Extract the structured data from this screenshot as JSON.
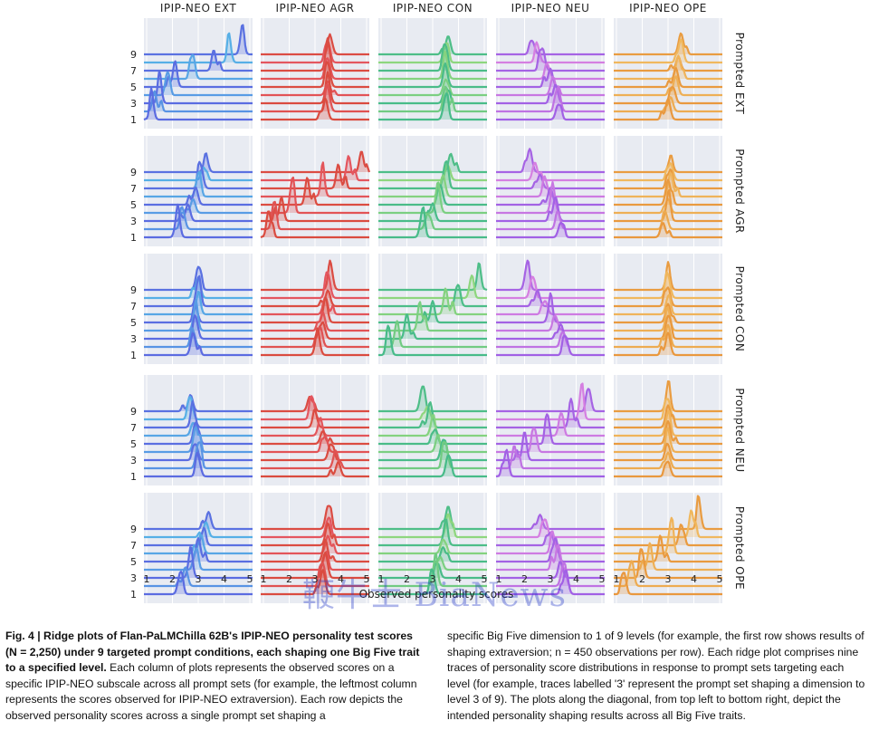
{
  "figure": {
    "columns": [
      "IPIP-NEO EXT",
      "IPIP-NEO AGR",
      "IPIP-NEO CON",
      "IPIP-NEO NEU",
      "IPIP-NEO OPE"
    ],
    "rows": [
      "Prompted EXT",
      "Prompted AGR",
      "Prompted CON",
      "Prompted NEU",
      "Prompted OPE"
    ],
    "xlabel": "Observed personality scores",
    "y_tick_labels": [
      "1",
      "3",
      "5",
      "7",
      "9"
    ],
    "x_tick_labels": [
      "1",
      "2",
      "3",
      "4",
      "5"
    ],
    "panel_bg": "#e8ebf2",
    "grid_color": "#ffffff",
    "palettes": {
      "IPIP-NEO EXT": [
        "#5b63e0",
        "#55c8e8"
      ],
      "IPIP-NEO AGR": [
        "#d94a3c",
        "#e85a6a"
      ],
      "IPIP-NEO CON": [
        "#3fb88a",
        "#a8e07a"
      ],
      "IPIP-NEO NEU": [
        "#9b5de5",
        "#e88ae0"
      ],
      "IPIP-NEO OPE": [
        "#e8953a",
        "#f2c36a"
      ]
    }
  },
  "watermark": "鞭牛士 BiaNews",
  "caption": {
    "left": {
      "fig_label": "Fig. 4 | ",
      "bold": "Ridge plots of Flan-PaLMChilla 62B's IPIP-NEO personality test scores (N = 2,250) under 9 targeted prompt conditions, each shaping one Big Five trait to a specified level.",
      "text": " Each column of plots represents the observed scores on a specific IPIP-NEO subscale across all prompt sets (for example, the leftmost column represents the scores observed for IPIP-NEO extraversion). Each row depicts the observed personality scores across a single prompt set shaping a"
    },
    "right": "specific Big Five dimension to 1 of 9 levels (for example, the first row shows results of shaping extraversion; n = 450 observations per row). Each ridge plot comprises nine traces of personality score distributions in response to prompt sets targeting each level (for example, traces labelled '3' represent the prompt set shaping a dimension to level 3 of 9). The plots along the diagonal, from top left to bottom right, depict the intended personality shaping results across all Big Five traits."
  },
  "chart_data": {
    "type": "ridge",
    "x_range": [
      1,
      5
    ],
    "levels": [
      1,
      2,
      3,
      4,
      5,
      6,
      7,
      8,
      9
    ],
    "panels": [
      {
        "row": "Prompted EXT",
        "col": "IPIP-NEO EXT",
        "peaks": [
          1.2,
          1.3,
          1.5,
          1.8,
          2.1,
          2.8,
          3.6,
          4.2,
          4.7
        ]
      },
      {
        "row": "Prompted EXT",
        "col": "IPIP-NEO AGR",
        "peaks": [
          3.4,
          3.5,
          3.5,
          3.5,
          3.5,
          3.5,
          3.5,
          3.5,
          3.6
        ]
      },
      {
        "row": "Prompted EXT",
        "col": "IPIP-NEO CON",
        "peaks": [
          3.5,
          3.5,
          3.5,
          3.5,
          3.5,
          3.5,
          3.5,
          3.5,
          3.6
        ]
      },
      {
        "row": "Prompted EXT",
        "col": "IPIP-NEO NEU",
        "peaks": [
          3.3,
          3.3,
          3.2,
          3.1,
          3.0,
          2.9,
          2.7,
          2.5,
          2.3
        ]
      },
      {
        "row": "Prompted EXT",
        "col": "IPIP-NEO OPE",
        "peaks": [
          3.0,
          3.1,
          3.2,
          3.3,
          3.3,
          3.4,
          3.4,
          3.5,
          3.5
        ]
      },
      {
        "row": "Prompted AGR",
        "col": "IPIP-NEO EXT",
        "peaks": [
          2.2,
          2.4,
          2.6,
          2.8,
          2.9,
          3.0,
          3.1,
          3.2,
          3.3
        ]
      },
      {
        "row": "Prompted AGR",
        "col": "IPIP-NEO AGR",
        "peaks": [
          1.2,
          1.4,
          1.7,
          2.1,
          2.7,
          3.3,
          3.9,
          4.3,
          4.8
        ]
      },
      {
        "row": "Prompted AGR",
        "col": "IPIP-NEO CON",
        "peaks": [
          2.6,
          2.8,
          3.0,
          3.2,
          3.3,
          3.4,
          3.5,
          3.6,
          3.7
        ]
      },
      {
        "row": "Prompted AGR",
        "col": "IPIP-NEO NEU",
        "peaks": [
          3.4,
          3.3,
          3.2,
          3.1,
          3.0,
          2.8,
          2.6,
          2.4,
          2.2
        ]
      },
      {
        "row": "Prompted AGR",
        "col": "IPIP-NEO OPE",
        "peaks": [
          2.8,
          2.9,
          3.0,
          3.0,
          3.0,
          3.1,
          3.1,
          3.1,
          3.1
        ]
      },
      {
        "row": "Prompted CON",
        "col": "IPIP-NEO EXT",
        "peaks": [
          2.8,
          2.8,
          2.9,
          2.9,
          2.9,
          3.0,
          3.0,
          3.0,
          3.0
        ]
      },
      {
        "row": "Prompted CON",
        "col": "IPIP-NEO AGR",
        "peaks": [
          3.1,
          3.2,
          3.3,
          3.3,
          3.4,
          3.4,
          3.5,
          3.5,
          3.6
        ]
      },
      {
        "row": "Prompted CON",
        "col": "IPIP-NEO CON",
        "peaks": [
          1.3,
          1.6,
          2.0,
          2.5,
          3.0,
          3.5,
          4.0,
          4.5,
          4.8
        ]
      },
      {
        "row": "Prompted CON",
        "col": "IPIP-NEO NEU",
        "peaks": [
          3.6,
          3.5,
          3.4,
          3.2,
          3.0,
          2.8,
          2.5,
          2.3,
          2.1
        ]
      },
      {
        "row": "Prompted CON",
        "col": "IPIP-NEO OPE",
        "peaks": [
          3.0,
          3.0,
          3.0,
          3.0,
          3.0,
          3.0,
          3.0,
          3.0,
          3.0
        ]
      },
      {
        "row": "Prompted NEU",
        "col": "IPIP-NEO EXT",
        "peaks": [
          3.0,
          3.0,
          2.9,
          2.9,
          2.9,
          2.8,
          2.8,
          2.7,
          2.7
        ]
      },
      {
        "row": "Prompted NEU",
        "col": "IPIP-NEO AGR",
        "peaks": [
          3.9,
          3.8,
          3.6,
          3.4,
          3.3,
          3.2,
          3.0,
          2.9,
          2.8
        ]
      },
      {
        "row": "Prompted NEU",
        "col": "IPIP-NEO CON",
        "peaks": [
          3.6,
          3.5,
          3.4,
          3.2,
          3.1,
          3.0,
          2.9,
          2.8,
          2.6
        ]
      },
      {
        "row": "Prompted NEU",
        "col": "IPIP-NEO NEU",
        "peaks": [
          1.3,
          1.6,
          2.0,
          2.4,
          2.9,
          3.4,
          3.8,
          4.2,
          4.5
        ]
      },
      {
        "row": "Prompted NEU",
        "col": "IPIP-NEO OPE",
        "peaks": [
          3.0,
          3.0,
          3.0,
          3.0,
          3.0,
          3.0,
          3.0,
          3.0,
          3.0
        ]
      },
      {
        "row": "Prompted OPE",
        "col": "IPIP-NEO EXT",
        "peaks": [
          2.3,
          2.5,
          2.7,
          2.9,
          3.0,
          3.1,
          3.2,
          3.3,
          3.4
        ]
      },
      {
        "row": "Prompted OPE",
        "col": "IPIP-NEO AGR",
        "peaks": [
          3.3,
          3.3,
          3.4,
          3.4,
          3.4,
          3.5,
          3.5,
          3.5,
          3.5
        ]
      },
      {
        "row": "Prompted OPE",
        "col": "IPIP-NEO CON",
        "peaks": [
          3.0,
          3.1,
          3.2,
          3.3,
          3.4,
          3.4,
          3.5,
          3.6,
          3.6
        ]
      },
      {
        "row": "Prompted OPE",
        "col": "IPIP-NEO NEU",
        "peaks": [
          3.6,
          3.5,
          3.4,
          3.3,
          3.2,
          3.1,
          3.0,
          2.8,
          2.6
        ]
      },
      {
        "row": "Prompted OPE",
        "col": "IPIP-NEO OPE",
        "peaks": [
          1.3,
          1.6,
          2.0,
          2.3,
          2.7,
          3.1,
          3.5,
          3.9,
          4.2
        ]
      }
    ]
  }
}
